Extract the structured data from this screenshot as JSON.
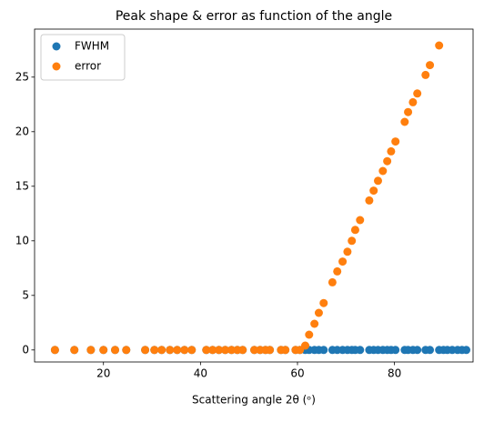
{
  "chart_data": {
    "type": "scatter",
    "title": "Peak shape & error as function of the angle",
    "xlabel": "Scattering angle 2θ (ᵒ)",
    "xlim": [
      5.8,
      96.2
    ],
    "ylim": [
      -1.1,
      29.4
    ],
    "xticks": [
      20,
      40,
      60,
      80
    ],
    "yticks": [
      0,
      5,
      10,
      15,
      20,
      25
    ],
    "legend": "upper left",
    "series": [
      {
        "name": "FWHM",
        "color": "#1f77b4",
        "x": [
          10,
          14,
          17.4,
          20,
          22.4,
          24.7,
          28.6,
          30.5,
          32,
          33.7,
          35.2,
          36.7,
          38.2,
          41.2,
          42.5,
          43.8,
          45.1,
          46.4,
          47.6,
          48.7,
          51.1,
          52.3,
          53.4,
          54.3,
          56.6,
          57.5,
          59.6,
          60.5,
          61.6,
          62.4,
          63.5,
          64.4,
          65.4,
          67.2,
          68.2,
          69.3,
          70.3,
          71.2,
          71.9,
          72.9,
          74.8,
          75.7,
          76.6,
          77.6,
          78.5,
          79.3,
          80.2,
          82.1,
          82.8,
          83.8,
          84.7,
          86.4,
          87.3,
          89.2,
          90.1,
          90.9,
          91.9,
          93,
          93.9,
          94.8
        ],
        "values": [
          0,
          0,
          0,
          0,
          0,
          0,
          0,
          0,
          0,
          0,
          0,
          0,
          0,
          0,
          0,
          0,
          0,
          0,
          0,
          0,
          0,
          0,
          0,
          0,
          0,
          0,
          0,
          0,
          0,
          0,
          0,
          0,
          0,
          0,
          0,
          0,
          0,
          0,
          0,
          0,
          0,
          0,
          0,
          0,
          0,
          0,
          0,
          0,
          0,
          0,
          0,
          0,
          0,
          0,
          0,
          0,
          0,
          0,
          0,
          0
        ]
      },
      {
        "name": "error",
        "color": "#ff7f0e",
        "x": [
          10,
          14,
          17.4,
          20,
          22.4,
          24.7,
          28.6,
          30.5,
          32,
          33.7,
          35.2,
          36.7,
          38.2,
          41.2,
          42.5,
          43.8,
          45.1,
          46.4,
          47.6,
          48.7,
          51.1,
          52.3,
          53.4,
          54.3,
          56.6,
          57.5,
          59.6,
          60.5,
          61.6,
          62.4,
          63.5,
          64.4,
          65.4,
          67.2,
          68.2,
          69.3,
          70.3,
          71.2,
          71.9,
          72.9,
          74.8,
          75.7,
          76.6,
          77.6,
          78.5,
          79.3,
          80.2,
          82.1,
          82.8,
          83.8,
          84.7,
          86.4,
          87.3,
          89.2
        ],
        "values": [
          0,
          0,
          0,
          0,
          0,
          0,
          0,
          0,
          0,
          0,
          0,
          0,
          0,
          0,
          0,
          0,
          0,
          0,
          0,
          0,
          0,
          0,
          0,
          0,
          0,
          0,
          0,
          0,
          0.4,
          1.4,
          2.4,
          3.4,
          4.3,
          6.2,
          7.2,
          8.1,
          9.0,
          10.0,
          11.0,
          11.9,
          13.7,
          14.6,
          15.5,
          16.4,
          17.3,
          18.2,
          19.1,
          20.9,
          21.8,
          22.7,
          23.5,
          25.2,
          26.1,
          27.9
        ]
      }
    ]
  }
}
